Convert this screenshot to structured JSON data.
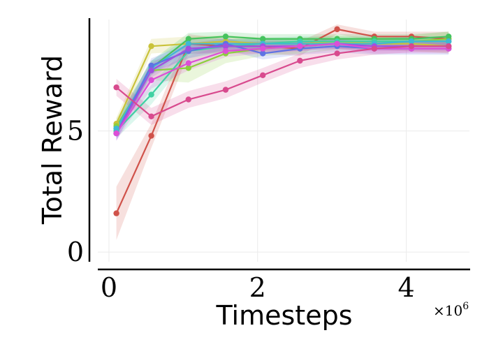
{
  "chart_data": {
    "type": "line",
    "xlabel": "Timesteps",
    "ylabel": "Total Reward",
    "x_multiplier_label": "×10",
    "x_multiplier_exp": "6",
    "xlim": [
      -0.15,
      4.85
    ],
    "ylim": [
      -0.4,
      9.6
    ],
    "x_ticks": [
      0,
      2,
      4
    ],
    "x_tick_labels": [
      "0",
      "2",
      "4"
    ],
    "y_ticks": [
      0,
      5
    ],
    "y_tick_labels": [
      "0",
      "5"
    ],
    "grid": true,
    "legend": "none",
    "x": [
      0.1,
      0.57,
      1.07,
      1.57,
      2.07,
      2.57,
      3.07,
      3.57,
      4.07,
      4.57
    ],
    "series": [
      {
        "color": "#d0524a",
        "values": [
          1.6,
          4.8,
          8.6,
          8.5,
          8.5,
          8.4,
          9.2,
          8.9,
          8.9,
          8.8
        ],
        "band": [
          1.1,
          0.5,
          0.4,
          0.3,
          0.3,
          0.3,
          0.2,
          0.2,
          0.2,
          0.3
        ]
      },
      {
        "color": "#c9c23a",
        "values": [
          5.3,
          8.5,
          8.6,
          8.7,
          8.6,
          8.6,
          8.7,
          8.6,
          8.6,
          8.5
        ],
        "band": [
          0.25,
          0.3,
          0.3,
          0.25,
          0.25,
          0.25,
          0.25,
          0.25,
          0.3,
          0.3
        ]
      },
      {
        "color": "#8ccf3d",
        "values": [
          5.2,
          7.5,
          7.6,
          8.2,
          8.4,
          8.5,
          8.6,
          8.6,
          8.7,
          8.8
        ],
        "band": [
          0.3,
          0.4,
          0.6,
          0.4,
          0.3,
          0.3,
          0.25,
          0.25,
          0.25,
          0.3
        ]
      },
      {
        "color": "#45c35e",
        "values": [
          5.1,
          7.6,
          8.8,
          8.9,
          8.8,
          8.8,
          8.8,
          8.8,
          8.8,
          8.9
        ],
        "band": [
          0.3,
          0.3,
          0.25,
          0.2,
          0.2,
          0.2,
          0.2,
          0.2,
          0.2,
          0.2
        ]
      },
      {
        "color": "#3fd1a3",
        "values": [
          5.0,
          6.5,
          8.3,
          8.5,
          8.6,
          8.7,
          8.7,
          8.7,
          8.7,
          8.7
        ],
        "band": [
          0.3,
          0.4,
          0.3,
          0.25,
          0.25,
          0.2,
          0.2,
          0.2,
          0.2,
          0.2
        ]
      },
      {
        "color": "#3fb8d4",
        "values": [
          5.1,
          7.6,
          8.6,
          8.6,
          8.6,
          8.6,
          8.6,
          8.6,
          8.7,
          8.7
        ],
        "band": [
          0.3,
          0.3,
          0.25,
          0.2,
          0.2,
          0.2,
          0.2,
          0.2,
          0.2,
          0.2
        ]
      },
      {
        "color": "#5f73e3",
        "values": [
          4.9,
          7.7,
          8.3,
          8.6,
          8.2,
          8.4,
          8.5,
          8.4,
          8.4,
          8.4
        ],
        "band": [
          0.3,
          0.3,
          0.3,
          0.25,
          0.25,
          0.25,
          0.25,
          0.25,
          0.25,
          0.25
        ]
      },
      {
        "color": "#a150e0",
        "values": [
          4.9,
          7.5,
          8.4,
          8.5,
          8.5,
          8.5,
          8.6,
          8.5,
          8.5,
          8.5
        ],
        "band": [
          0.3,
          0.3,
          0.25,
          0.2,
          0.2,
          0.2,
          0.2,
          0.2,
          0.2,
          0.2
        ]
      },
      {
        "color": "#dc4fd6",
        "values": [
          4.9,
          7.1,
          7.8,
          8.3,
          8.4,
          8.5,
          8.6,
          8.4,
          8.4,
          8.4
        ],
        "band": [
          0.3,
          0.35,
          0.3,
          0.25,
          0.2,
          0.2,
          0.2,
          0.2,
          0.2,
          0.2
        ]
      },
      {
        "color": "#d84a8e",
        "values": [
          6.8,
          5.6,
          6.3,
          6.7,
          7.3,
          7.9,
          8.2,
          8.4,
          8.5,
          8.5
        ],
        "band": [
          0.35,
          0.35,
          0.35,
          0.35,
          0.3,
          0.3,
          0.25,
          0.25,
          0.25,
          0.25
        ]
      }
    ]
  }
}
